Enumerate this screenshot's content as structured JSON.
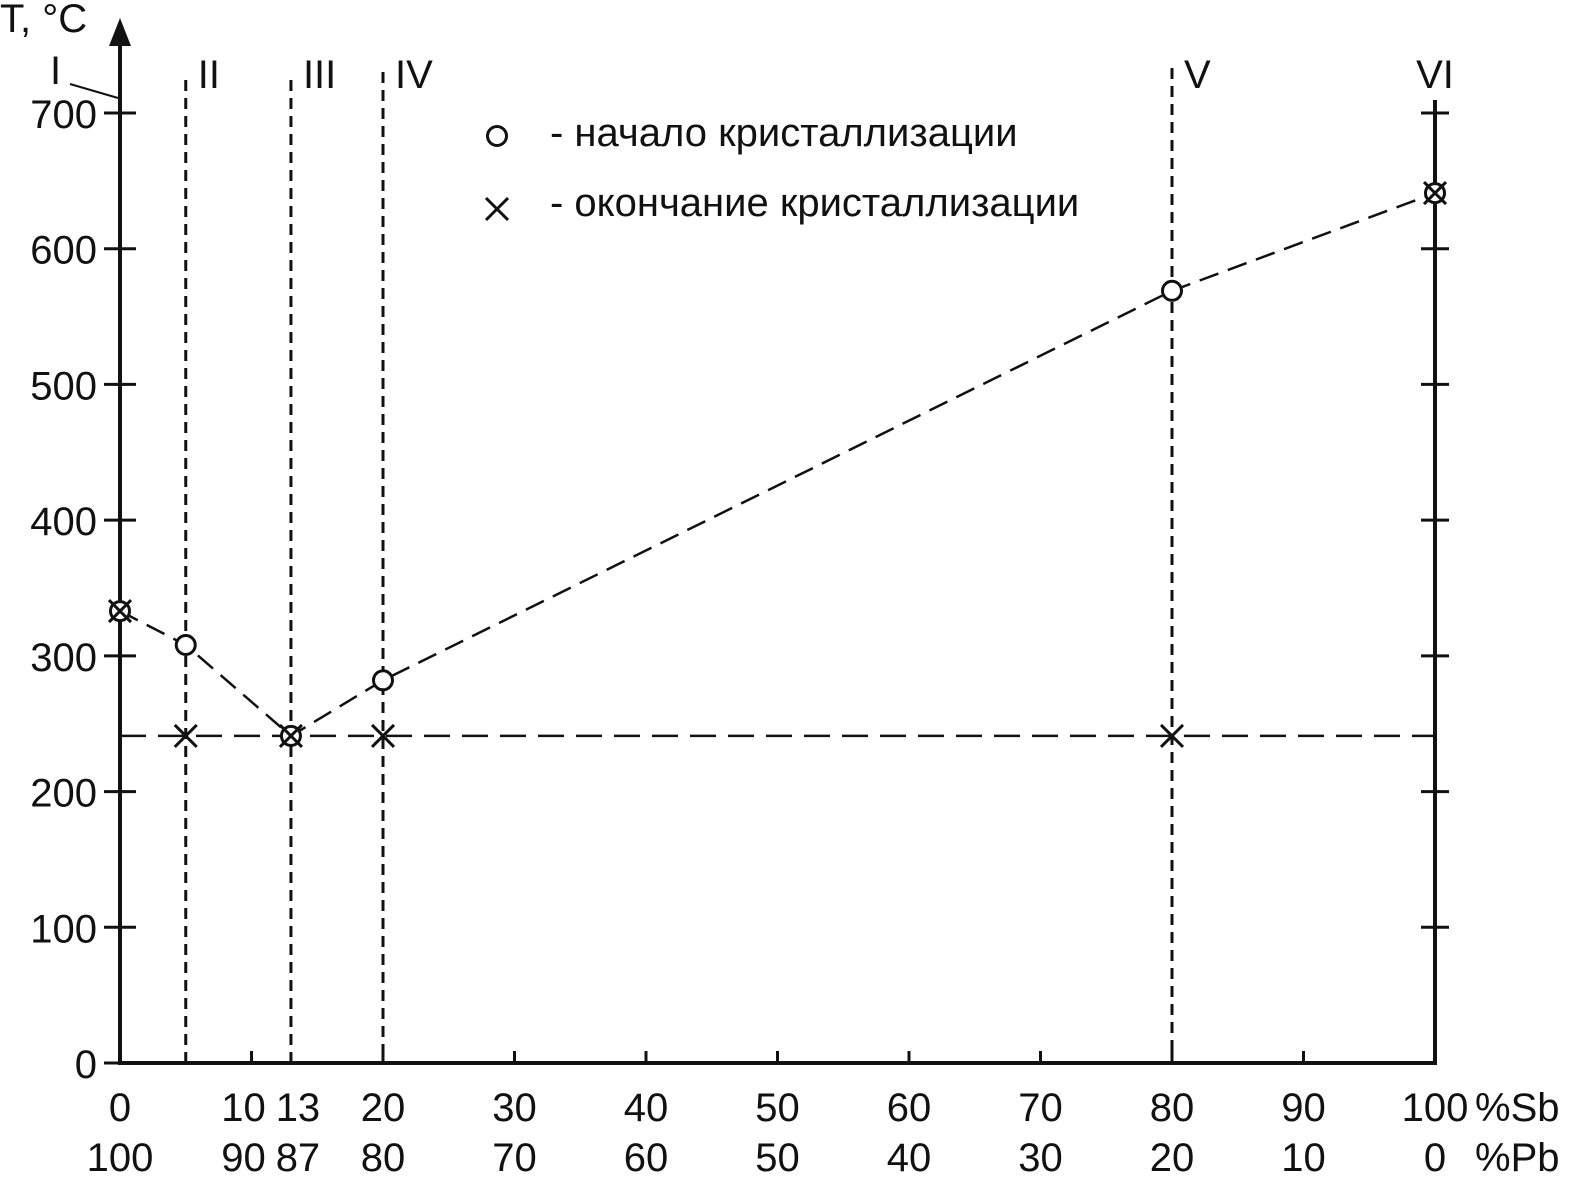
{
  "chart_data": {
    "type": "line",
    "ylabel": "T, °C",
    "ylim": [
      0,
      700
    ],
    "yticks": [
      "0",
      "100",
      "200",
      "300",
      "400",
      "500",
      "600",
      "700"
    ],
    "x_unit_top": "%Sb",
    "x_unit_bottom": "%Pb",
    "xlim": [
      0,
      100
    ],
    "xticks": [
      {
        "x": 0,
        "sb": "0",
        "pb": "100"
      },
      {
        "x": 10,
        "sb": "10",
        "pb": "90"
      },
      {
        "x": 13,
        "sb": "13",
        "pb": "87"
      },
      {
        "x": 20,
        "sb": "20",
        "pb": "80"
      },
      {
        "x": 30,
        "sb": "30",
        "pb": "70"
      },
      {
        "x": 40,
        "sb": "40",
        "pb": "60"
      },
      {
        "x": 50,
        "sb": "50",
        "pb": "50"
      },
      {
        "x": 60,
        "sb": "60",
        "pb": "40"
      },
      {
        "x": 70,
        "sb": "70",
        "pb": "30"
      },
      {
        "x": 80,
        "sb": "80",
        "pb": "20"
      },
      {
        "x": 90,
        "sb": "90",
        "pb": "10"
      },
      {
        "x": 100,
        "sb": "100",
        "pb": "0"
      }
    ],
    "alloys": [
      {
        "label": "I",
        "x": 0
      },
      {
        "label": "II",
        "x": 5
      },
      {
        "label": "III",
        "x": 13
      },
      {
        "label": "IV",
        "x": 20
      },
      {
        "label": "V",
        "x": 80
      },
      {
        "label": "VI",
        "x": 100
      }
    ],
    "series": [
      {
        "name": "- начало кристаллизации",
        "marker": "circle",
        "points": [
          [
            0,
            333
          ],
          [
            5,
            308
          ],
          [
            13,
            241
          ],
          [
            20,
            282
          ],
          [
            80,
            569
          ],
          [
            100,
            641
          ]
        ]
      },
      {
        "name": "- окончание кристаллизации",
        "marker": "cross",
        "points": [
          [
            0,
            333
          ],
          [
            5,
            241
          ],
          [
            13,
            241
          ],
          [
            20,
            241
          ],
          [
            80,
            241
          ],
          [
            100,
            641
          ]
        ]
      }
    ],
    "eutectic_temperature": 241,
    "grid": false,
    "legend_position": "top-center"
  }
}
